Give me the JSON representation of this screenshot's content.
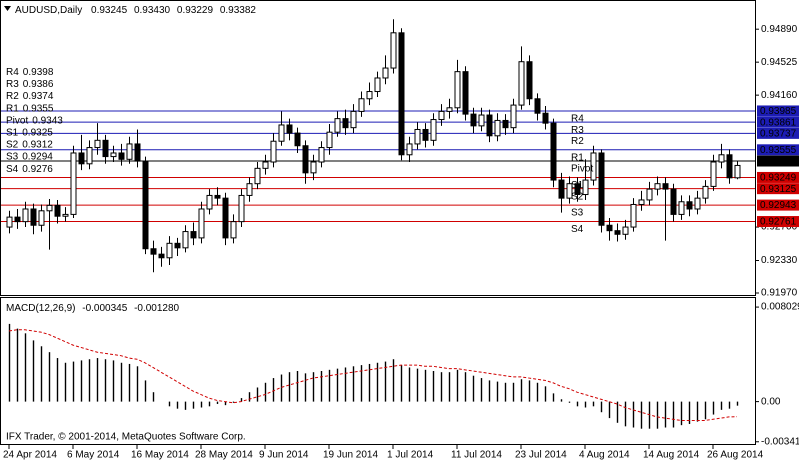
{
  "chart_data": [
    {
      "type": "candlestick",
      "title": "AUDUSD,Daily",
      "last_labels": [
        "0.93245",
        "0.93430",
        "0.93229",
        "0.93382"
      ],
      "categories": [
        "24 Apr 2014",
        null,
        null,
        null,
        null,
        null,
        null,
        null,
        "6 May 2014",
        null,
        null,
        null,
        null,
        null,
        null,
        null,
        "16 May 2014",
        null,
        null,
        null,
        null,
        null,
        null,
        null,
        "28 May 2014",
        null,
        null,
        null,
        null,
        null,
        null,
        null,
        "9 Jun 2014",
        null,
        null,
        null,
        null,
        null,
        null,
        null,
        "19 Jun 2014",
        null,
        null,
        null,
        null,
        null,
        null,
        null,
        "1 Jul 2014",
        null,
        null,
        null,
        null,
        null,
        null,
        null,
        "11 Jul 2014",
        null,
        null,
        null,
        null,
        null,
        null,
        null,
        "23 Jul 2014",
        null,
        null,
        null,
        null,
        null,
        null,
        null,
        "4 Aug 2014",
        null,
        null,
        null,
        null,
        null,
        null,
        null,
        "14 Aug 2014",
        null,
        null,
        null,
        null,
        null,
        null,
        null,
        "26 Aug 2014",
        null,
        null,
        null
      ],
      "open": [
        0.927,
        0.9281,
        0.9276,
        0.929,
        0.9272,
        0.9288,
        0.9294,
        0.9282,
        0.9284,
        0.9352,
        0.934,
        0.9358,
        0.9366,
        0.9348,
        0.9352,
        0.9345,
        0.9362,
        0.9343,
        0.9246,
        0.924,
        0.9236,
        0.9252,
        0.9247,
        0.9265,
        0.9258,
        0.929,
        0.9305,
        0.9302,
        0.9258,
        0.9276,
        0.9305,
        0.9318,
        0.9335,
        0.9342,
        0.9365,
        0.9383,
        0.9374,
        0.936,
        0.933,
        0.9342,
        0.9358,
        0.9375,
        0.939,
        0.938,
        0.9398,
        0.9412,
        0.942,
        0.9435,
        0.9446,
        0.9485,
        0.935,
        0.9362,
        0.9378,
        0.9366,
        0.9389,
        0.9398,
        0.9402,
        0.9442,
        0.9395,
        0.9382,
        0.9394,
        0.9371,
        0.9388,
        0.938,
        0.9405,
        0.9453,
        0.9412,
        0.9396,
        0.9385,
        0.9322,
        0.9302,
        0.9318,
        0.9306,
        0.9322,
        0.9352,
        0.9272,
        0.9266,
        0.9262,
        0.927,
        0.9295,
        0.93,
        0.9312,
        0.9318,
        0.9312,
        0.9284,
        0.9298,
        0.929,
        0.9302,
        0.9315,
        0.9342,
        0.935,
        0.93245
      ],
      "high": [
        0.9288,
        0.929,
        0.9298,
        0.9296,
        0.9295,
        0.9301,
        0.93,
        0.9292,
        0.936,
        0.9372,
        0.9366,
        0.9385,
        0.9372,
        0.936,
        0.9362,
        0.937,
        0.9378,
        0.9348,
        0.9255,
        0.9248,
        0.926,
        0.9258,
        0.9272,
        0.9275,
        0.9298,
        0.9312,
        0.9314,
        0.9308,
        0.9284,
        0.9312,
        0.9325,
        0.9342,
        0.935,
        0.9374,
        0.9398,
        0.939,
        0.938,
        0.9366,
        0.935,
        0.9365,
        0.9384,
        0.9398,
        0.94,
        0.9406,
        0.942,
        0.943,
        0.9442,
        0.946,
        0.95,
        0.949,
        0.937,
        0.9386,
        0.9385,
        0.9396,
        0.9406,
        0.9412,
        0.9455,
        0.9448,
        0.9402,
        0.9402,
        0.94,
        0.9396,
        0.9395,
        0.9412,
        0.947,
        0.946,
        0.9418,
        0.9404,
        0.939,
        0.933,
        0.9326,
        0.9325,
        0.9345,
        0.936,
        0.9356,
        0.928,
        0.9274,
        0.9278,
        0.9302,
        0.931,
        0.932,
        0.9326,
        0.9325,
        0.9318,
        0.9305,
        0.9305,
        0.931,
        0.9322,
        0.935,
        0.9362,
        0.9356,
        0.9343
      ],
      "low": [
        0.9263,
        0.9268,
        0.927,
        0.9262,
        0.9265,
        0.9245,
        0.9274,
        0.9276,
        0.928,
        0.9333,
        0.9334,
        0.935,
        0.934,
        0.9342,
        0.9338,
        0.934,
        0.9336,
        0.924,
        0.922,
        0.9226,
        0.9228,
        0.9238,
        0.9242,
        0.925,
        0.9252,
        0.9284,
        0.9294,
        0.925,
        0.9252,
        0.927,
        0.9298,
        0.9312,
        0.9328,
        0.9336,
        0.936,
        0.9366,
        0.9352,
        0.9318,
        0.9322,
        0.9336,
        0.935,
        0.937,
        0.9372,
        0.9374,
        0.9392,
        0.9405,
        0.9414,
        0.9428,
        0.944,
        0.9344,
        0.9342,
        0.9356,
        0.9358,
        0.936,
        0.9382,
        0.939,
        0.9396,
        0.9388,
        0.9374,
        0.9376,
        0.9364,
        0.9365,
        0.9372,
        0.9374,
        0.94,
        0.9405,
        0.9388,
        0.9378,
        0.9314,
        0.9286,
        0.9296,
        0.9298,
        0.93,
        0.9316,
        0.9264,
        0.9255,
        0.9254,
        0.9256,
        0.9265,
        0.9288,
        0.9294,
        0.9305,
        0.9255,
        0.9276,
        0.9278,
        0.9282,
        0.9284,
        0.9296,
        0.931,
        0.9335,
        0.9318,
        0.93229
      ],
      "close": [
        0.9281,
        0.9276,
        0.929,
        0.9272,
        0.9288,
        0.9294,
        0.9282,
        0.9284,
        0.9352,
        0.934,
        0.9358,
        0.9366,
        0.9348,
        0.9352,
        0.9345,
        0.9362,
        0.9343,
        0.9246,
        0.924,
        0.9236,
        0.9252,
        0.9247,
        0.9265,
        0.9258,
        0.929,
        0.9305,
        0.9302,
        0.9258,
        0.9276,
        0.9305,
        0.9318,
        0.9335,
        0.9342,
        0.9365,
        0.9383,
        0.9374,
        0.936,
        0.933,
        0.9342,
        0.9358,
        0.9375,
        0.939,
        0.938,
        0.9398,
        0.9412,
        0.942,
        0.9435,
        0.9446,
        0.9485,
        0.935,
        0.9362,
        0.9378,
        0.9366,
        0.9389,
        0.9398,
        0.9402,
        0.9442,
        0.9395,
        0.9382,
        0.9394,
        0.9371,
        0.9388,
        0.938,
        0.9405,
        0.9453,
        0.9412,
        0.9396,
        0.9385,
        0.9322,
        0.9302,
        0.9318,
        0.9306,
        0.9322,
        0.9352,
        0.9272,
        0.9266,
        0.9262,
        0.927,
        0.9295,
        0.93,
        0.9312,
        0.9318,
        0.9312,
        0.9284,
        0.9298,
        0.929,
        0.9302,
        0.9315,
        0.9342,
        0.935,
        0.93245,
        0.93382
      ],
      "up_color": "#ffffff",
      "down_color": "#000000",
      "line_color": "#000000",
      "ylim": [
        0.91948,
        0.95202
      ],
      "yticks": [
        {
          "value": 0.9489,
          "label": "0.94890"
        },
        0.94525,
        {
          "value": 0.9416,
          "label": "0.94160"
        },
        {
          "value": 0.927,
          "label": "0.92700"
        },
        {
          "value": 0.9233,
          "label": "0.92330"
        },
        {
          "value": 0.9197,
          "label": "0.91970"
        }
      ],
      "pivots": [
        {
          "name": "R4",
          "value": 0.93985,
          "left_label": "0.9398",
          "color": "#1c1cb4"
        },
        {
          "name": "R3",
          "value": 0.93861,
          "left_label": "0.9386",
          "color": "#1c1cb4"
        },
        {
          "name": "R2",
          "value": 0.93737,
          "left_label": "0.9374",
          "color": "#1c1cb4"
        },
        {
          "name": "R1",
          "value": 0.93555,
          "left_label": "0.9355",
          "color": "#1c1cb4"
        },
        {
          "name": "Pivot",
          "value": 0.93431,
          "left_label": "0.9343",
          "color": "#000000"
        },
        {
          "name": "S1",
          "value": 0.93249,
          "left_label": "0.9325",
          "color": "#d00000"
        },
        {
          "name": "S2",
          "value": 0.93125,
          "left_label": "0.9312",
          "color": "#d00000"
        },
        {
          "name": "S3",
          "value": 0.92943,
          "left_label": "0.9294",
          "color": "#d00000"
        },
        {
          "name": "S4",
          "value": 0.92761,
          "left_label": "0.9276",
          "color": "#d00000"
        }
      ]
    },
    {
      "type": "macd",
      "title": "MACD(12,26,9)",
      "value_labels": [
        "-0.000345",
        "-0.001280"
      ],
      "footer": "IFX Trader, © 2001-2014, MetaQuotes Software Corp.",
      "ylim": [
        -0.0036,
        0.0088
      ],
      "yticks": [
        0.008029,
        {
          "value": 0,
          "label": "0.00"
        },
        -0.00341
      ],
      "histogram": {
        "color": "#000000",
        "values": [
          0.0066,
          0.0062,
          0.0058,
          0.0052,
          0.0047,
          0.0042,
          0.0037,
          0.0033,
          0.0034,
          0.0035,
          0.0036,
          0.0037,
          0.0036,
          0.0035,
          0.0033,
          0.0032,
          0.003,
          0.0018,
          0.0008,
          0,
          -0.0004,
          -0.0006,
          -0.0007,
          -0.0006,
          -0.0005,
          -0.0004,
          -0.0002,
          -0.0003,
          -0.0001,
          0.0003,
          0.0008,
          0.0012,
          0.0016,
          0.002,
          0.0023,
          0.0025,
          0.0026,
          0.0024,
          0.0025,
          0.0026,
          0.0027,
          0.0028,
          0.0029,
          0.003,
          0.0031,
          0.0032,
          0.0033,
          0.0034,
          0.0036,
          0.0031,
          0.0029,
          0.0028,
          0.0027,
          0.0026,
          0.0025,
          0.0025,
          0.0027,
          0.0025,
          0.0022,
          0.002,
          0.0018,
          0.0017,
          0.0016,
          0.0016,
          0.0019,
          0.0018,
          0.0016,
          0.0013,
          0.0007,
          0.0002,
          -0.0001,
          -0.0004,
          -0.0005,
          -0.0004,
          -0.0009,
          -0.0014,
          -0.0018,
          -0.0021,
          -0.0022,
          -0.0023,
          -0.0023,
          -0.0023,
          -0.0022,
          -0.0022,
          -0.002,
          -0.0019,
          -0.0017,
          -0.0015,
          -0.0011,
          -0.0007,
          -0.0006,
          -0.000345
        ]
      },
      "signal": {
        "color": "#d00000",
        "values": [
          0.006,
          0.0061,
          0.0061,
          0.006,
          0.0059,
          0.0057,
          0.0054,
          0.0051,
          0.0048,
          0.0046,
          0.0044,
          0.0042,
          0.0041,
          0.004,
          0.0039,
          0.0037,
          0.0036,
          0.0033,
          0.0029,
          0.0025,
          0.0021,
          0.0017,
          0.0013,
          0.0009,
          0.0006,
          0.0003,
          0.0001,
          0,
          -0.0001,
          0,
          0.0002,
          0.0004,
          0.0006,
          0.0009,
          0.0012,
          0.0014,
          0.0016,
          0.0018,
          0.002,
          0.0021,
          0.0022,
          0.0023,
          0.0024,
          0.0025,
          0.0026,
          0.0027,
          0.0028,
          0.0029,
          0.003,
          0.0031,
          0.0031,
          0.0031,
          0.003,
          0.003,
          0.0029,
          0.0028,
          0.0028,
          0.0027,
          0.0026,
          0.0025,
          0.0024,
          0.0023,
          0.0022,
          0.0021,
          0.0021,
          0.002,
          0.0019,
          0.0018,
          0.0016,
          0.0013,
          0.0011,
          0.0008,
          0.0006,
          0.0004,
          0.0002,
          0,
          -0.0002,
          -0.0005,
          -0.0007,
          -0.0009,
          -0.0011,
          -0.0013,
          -0.0014,
          -0.0015,
          -0.0016,
          -0.0016,
          -0.0016,
          -0.0016,
          -0.0015,
          -0.0014,
          -0.0013,
          -0.00128
        ]
      }
    }
  ]
}
